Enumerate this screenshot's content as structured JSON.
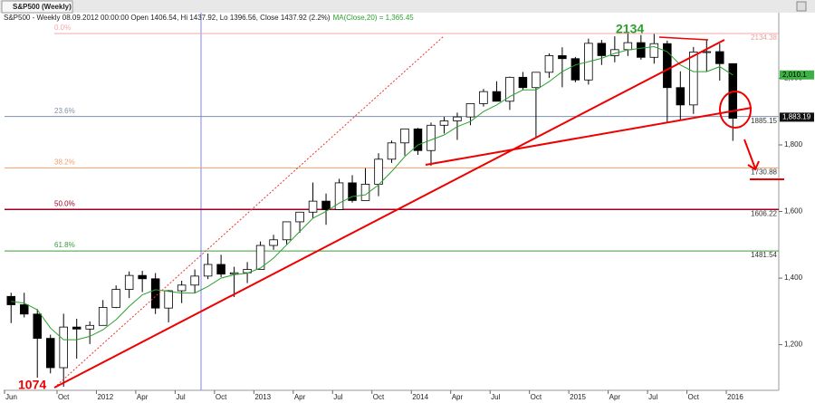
{
  "window_title": "S&P500 (Weekly)",
  "chart_data": {
    "type": "candlestick",
    "info": "S&P500 - Weekly 08.09.2012 00:00:00 Open 1406.54, Hi 1437.92, Lo 1396.56, Close 1437.92 (2.2%)",
    "ma_info": "MA(Close,20) = 1,365.45",
    "x": [
      "2011-06",
      "2011-07",
      "2011-08",
      "2011-09",
      "2011-10",
      "2011-11",
      "2011-12",
      "2012-01",
      "2012-02",
      "2012-03",
      "2012-04",
      "2012-05",
      "2012-06",
      "2012-07",
      "2012-08",
      "2012-09",
      "2012-10",
      "2012-11",
      "2012-12",
      "2013-01",
      "2013-02",
      "2013-03",
      "2013-04",
      "2013-05",
      "2013-06",
      "2013-07",
      "2013-08",
      "2013-09",
      "2013-10",
      "2013-11",
      "2013-12",
      "2014-01",
      "2014-02",
      "2014-03",
      "2014-04",
      "2014-05",
      "2014-06",
      "2014-07",
      "2014-08",
      "2014-09",
      "2014-10",
      "2014-11",
      "2014-12",
      "2015-01",
      "2015-02",
      "2015-03",
      "2015-04",
      "2015-05",
      "2015-06",
      "2015-07",
      "2015-08",
      "2015-09",
      "2015-10",
      "2015-11",
      "2015-12",
      "2016-01"
    ],
    "candles": [
      [
        1345,
        1356,
        1265,
        1320
      ],
      [
        1320,
        1356,
        1282,
        1292
      ],
      [
        1292,
        1307,
        1101,
        1219
      ],
      [
        1219,
        1230,
        1114,
        1131
      ],
      [
        1131,
        1293,
        1074,
        1253
      ],
      [
        1253,
        1278,
        1158,
        1247
      ],
      [
        1247,
        1270,
        1202,
        1258
      ],
      [
        1258,
        1334,
        1258,
        1312
      ],
      [
        1312,
        1378,
        1310,
        1366
      ],
      [
        1366,
        1420,
        1340,
        1408
      ],
      [
        1408,
        1422,
        1358,
        1398
      ],
      [
        1398,
        1415,
        1292,
        1310
      ],
      [
        1310,
        1364,
        1267,
        1362
      ],
      [
        1362,
        1392,
        1325,
        1379
      ],
      [
        1379,
        1426,
        1355,
        1406
      ],
      [
        1406,
        1474,
        1397,
        1441
      ],
      [
        1441,
        1470,
        1403,
        1412
      ],
      [
        1412,
        1434,
        1343,
        1416
      ],
      [
        1416,
        1448,
        1385,
        1426
      ],
      [
        1426,
        1510,
        1426,
        1498
      ],
      [
        1498,
        1530,
        1485,
        1515
      ],
      [
        1515,
        1570,
        1502,
        1569
      ],
      [
        1569,
        1598,
        1536,
        1598
      ],
      [
        1598,
        1687,
        1581,
        1631
      ],
      [
        1631,
        1654,
        1560,
        1606
      ],
      [
        1606,
        1698,
        1604,
        1686
      ],
      [
        1686,
        1709,
        1627,
        1633
      ],
      [
        1633,
        1730,
        1633,
        1682
      ],
      [
        1682,
        1775,
        1646,
        1757
      ],
      [
        1757,
        1813,
        1746,
        1806
      ],
      [
        1806,
        1849,
        1768,
        1848
      ],
      [
        1848,
        1851,
        1770,
        1783
      ],
      [
        1783,
        1867,
        1737,
        1859
      ],
      [
        1859,
        1884,
        1834,
        1872
      ],
      [
        1872,
        1897,
        1815,
        1884
      ],
      [
        1884,
        1924,
        1859,
        1924
      ],
      [
        1924,
        1968,
        1915,
        1960
      ],
      [
        1960,
        1991,
        1931,
        1931
      ],
      [
        1931,
        2005,
        1905,
        2003
      ],
      [
        2003,
        2019,
        1964,
        1972
      ],
      [
        1972,
        2018,
        1821,
        2018
      ],
      [
        2018,
        2075,
        2001,
        2068
      ],
      [
        2068,
        2093,
        1973,
        2059
      ],
      [
        2059,
        2064,
        1988,
        1995
      ],
      [
        1995,
        2119,
        1981,
        2105
      ],
      [
        2105,
        2115,
        2040,
        2068
      ],
      [
        2068,
        2126,
        2048,
        2086
      ],
      [
        2086,
        2134,
        2067,
        2107
      ],
      [
        2107,
        2130,
        2056,
        2063
      ],
      [
        2063,
        2133,
        2044,
        2104
      ],
      [
        2104,
        2113,
        1867,
        1972
      ],
      [
        1972,
        2021,
        1872,
        1920
      ],
      [
        1920,
        2094,
        1893,
        2079
      ],
      [
        2079,
        2116,
        2019,
        2080
      ],
      [
        2080,
        2104,
        1993,
        2044
      ],
      [
        2044,
        2044,
        1812,
        1880
      ]
    ],
    "up_color": "#ffffff",
    "down_color": "#000000",
    "ma": {
      "color": "#2ca02c",
      "values": [
        1330,
        1325,
        1305,
        1250,
        1215,
        1215,
        1225,
        1245,
        1275,
        1315,
        1350,
        1365,
        1360,
        1355,
        1355,
        1375,
        1400,
        1410,
        1415,
        1430,
        1460,
        1500,
        1540,
        1580,
        1600,
        1625,
        1645,
        1650,
        1680,
        1720,
        1765,
        1800,
        1815,
        1830,
        1855,
        1870,
        1900,
        1920,
        1945,
        1965,
        1965,
        1990,
        2020,
        2040,
        2050,
        2060,
        2075,
        2085,
        2090,
        2095,
        2080,
        2040,
        2020,
        2020,
        2035,
        2010
      ]
    },
    "fib_levels": [
      {
        "label": "0.0%",
        "value": 2134.38,
        "color": "#f4a8a8"
      },
      {
        "label": "23.6%",
        "value": 1885.15,
        "color": "#7f8fae"
      },
      {
        "label": "38.2%",
        "value": 1730.88,
        "color": "#f0a070"
      },
      {
        "label": "50.0%",
        "value": 1606.22,
        "color": "#a00020"
      },
      {
        "label": "61.8%",
        "value": 1481.54,
        "color": "#3c9c3c"
      }
    ],
    "price_markers": [
      {
        "value": 2010.1,
        "label": "2,010.1",
        "color": "#3cb043"
      },
      {
        "value": 1883.19,
        "label": "1,883.19",
        "color": "#111111"
      }
    ],
    "annotations": [
      "2134",
      "1074"
    ],
    "xlim": [
      "2011-06",
      "2016-05"
    ],
    "xticks": [
      {
        "value": "2011-06",
        "label": "Jun"
      },
      {
        "value": "2011-10",
        "label": "Oct"
      },
      {
        "value": "2012-01",
        "label": "2012"
      },
      {
        "value": "2012-04",
        "label": "Apr"
      },
      {
        "value": "2012-07",
        "label": "Jul"
      },
      {
        "value": "2012-10",
        "label": "Oct"
      },
      {
        "value": "2013-01",
        "label": "2013"
      },
      {
        "value": "2013-04",
        "label": "Apr"
      },
      {
        "value": "2013-07",
        "label": "Jul"
      },
      {
        "value": "2013-10",
        "label": "Oct"
      },
      {
        "value": "2014-01",
        "label": "2014"
      },
      {
        "value": "2014-04",
        "label": "Apr"
      },
      {
        "value": "2014-07",
        "label": "Jul"
      },
      {
        "value": "2014-10",
        "label": "Oct"
      },
      {
        "value": "2015-01",
        "label": "2015"
      },
      {
        "value": "2015-04",
        "label": "Apr"
      },
      {
        "value": "2015-07",
        "label": "Jul"
      },
      {
        "value": "2015-10",
        "label": "Oct"
      },
      {
        "value": "2016-01",
        "label": "2016"
      }
    ],
    "ylim": [
      1063,
      2197
    ],
    "yticks": [
      {
        "value": 1200,
        "label": "1,200"
      },
      {
        "value": 1400,
        "label": "1,400"
      },
      {
        "value": 1600,
        "label": "1,600"
      },
      {
        "value": 1800,
        "label": "1,800"
      },
      {
        "value": 2000,
        "label": "2,000"
      }
    ]
  }
}
